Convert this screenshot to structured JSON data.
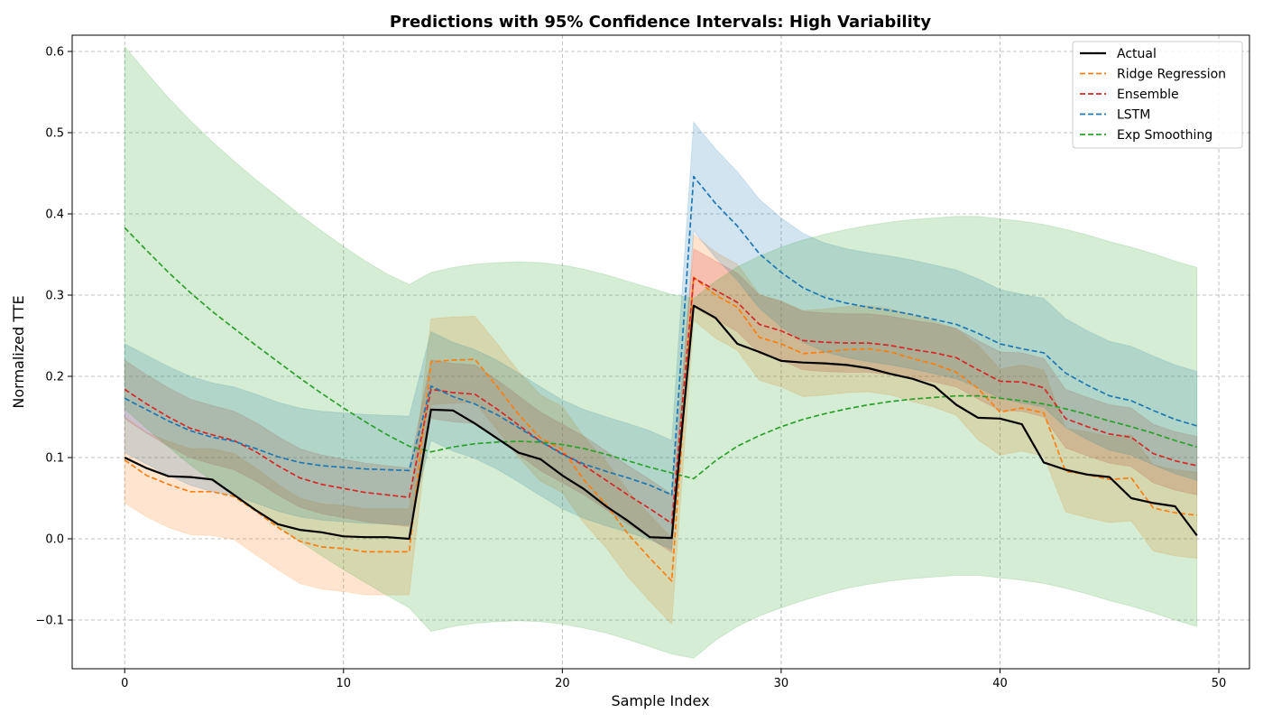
{
  "chart_data": {
    "type": "line",
    "title": "Predictions with 95% Confidence Intervals: High Variability",
    "xlabel": "Sample Index",
    "ylabel": "Normalized TTE",
    "xlim": [
      -2.4,
      51.4
    ],
    "ylim": [
      -0.16,
      0.62
    ],
    "xticks": [
      0,
      10,
      20,
      30,
      40,
      50
    ],
    "yticks": [
      -0.1,
      0.0,
      0.1,
      0.2,
      0.3,
      0.4,
      0.5,
      0.6
    ],
    "ytick_labels": [
      "−0.1",
      "0.0",
      "0.1",
      "0.2",
      "0.3",
      "0.4",
      "0.5",
      "0.6"
    ],
    "grid": true,
    "legend_position": "top-right",
    "x": [
      0,
      1,
      2,
      3,
      4,
      5,
      6,
      7,
      8,
      9,
      10,
      11,
      12,
      13,
      14,
      15,
      16,
      17,
      18,
      19,
      20,
      21,
      22,
      23,
      24,
      25,
      26,
      27,
      28,
      29,
      30,
      31,
      32,
      33,
      34,
      35,
      36,
      37,
      38,
      39,
      40,
      41,
      42,
      43,
      44,
      45,
      46,
      47,
      48,
      49
    ],
    "series": [
      {
        "name": "Actual",
        "color": "#000000",
        "style": "solid",
        "values": [
          0.1,
          0.087,
          0.077,
          0.076,
          0.073,
          0.054,
          0.035,
          0.018,
          0.011,
          0.008,
          0.003,
          0.002,
          0.002,
          0.0,
          0.159,
          0.158,
          0.142,
          0.124,
          0.106,
          0.098,
          0.078,
          0.061,
          0.04,
          0.022,
          0.002,
          0.001,
          0.287,
          0.272,
          0.24,
          0.23,
          0.219,
          0.217,
          0.216,
          0.214,
          0.21,
          0.203,
          0.197,
          0.188,
          0.165,
          0.149,
          0.148,
          0.141,
          0.094,
          0.085,
          0.079,
          0.076,
          0.05,
          0.044,
          0.04,
          0.004
        ]
      },
      {
        "name": "Ridge Regression",
        "color": "#ff7f0e",
        "style": "dashed",
        "values": [
          0.097,
          0.078,
          0.067,
          0.058,
          0.058,
          0.052,
          0.034,
          0.014,
          -0.003,
          -0.01,
          -0.012,
          -0.016,
          -0.016,
          -0.016,
          0.218,
          0.22,
          0.221,
          0.188,
          0.153,
          0.124,
          0.11,
          0.072,
          0.042,
          0.006,
          -0.024,
          -0.052,
          0.322,
          0.3,
          0.285,
          0.248,
          0.24,
          0.228,
          0.23,
          0.233,
          0.234,
          0.23,
          0.222,
          0.215,
          0.205,
          0.185,
          0.156,
          0.161,
          0.155,
          0.083,
          0.079,
          0.073,
          0.075,
          0.038,
          0.032,
          0.029
        ]
      },
      {
        "name": "Ensemble",
        "color": "#d62728",
        "style": "dashed",
        "values": [
          0.184,
          0.166,
          0.15,
          0.136,
          0.128,
          0.121,
          0.107,
          0.09,
          0.075,
          0.067,
          0.062,
          0.057,
          0.054,
          0.051,
          0.184,
          0.18,
          0.178,
          0.16,
          0.14,
          0.12,
          0.105,
          0.09,
          0.072,
          0.054,
          0.037,
          0.019,
          0.321,
          0.306,
          0.291,
          0.264,
          0.256,
          0.244,
          0.242,
          0.241,
          0.241,
          0.238,
          0.233,
          0.229,
          0.223,
          0.208,
          0.194,
          0.193,
          0.186,
          0.148,
          0.138,
          0.129,
          0.125,
          0.105,
          0.096,
          0.09
        ]
      },
      {
        "name": "LSTM",
        "color": "#1f77b4",
        "style": "dashed",
        "values": [
          0.173,
          0.159,
          0.145,
          0.133,
          0.125,
          0.12,
          0.111,
          0.101,
          0.094,
          0.09,
          0.088,
          0.086,
          0.085,
          0.084,
          0.188,
          0.175,
          0.166,
          0.153,
          0.137,
          0.12,
          0.104,
          0.092,
          0.083,
          0.075,
          0.066,
          0.054,
          0.446,
          0.413,
          0.385,
          0.351,
          0.328,
          0.309,
          0.297,
          0.29,
          0.285,
          0.281,
          0.276,
          0.27,
          0.264,
          0.253,
          0.24,
          0.234,
          0.229,
          0.204,
          0.189,
          0.176,
          0.17,
          0.158,
          0.147,
          0.139
        ]
      },
      {
        "name": "Exp Smoothing",
        "color": "#2ca02c",
        "style": "dashed",
        "values": [
          0.383,
          0.355,
          0.328,
          0.303,
          0.28,
          0.259,
          0.238,
          0.218,
          0.198,
          0.179,
          0.161,
          0.144,
          0.128,
          0.114,
          0.107,
          0.113,
          0.117,
          0.119,
          0.12,
          0.119,
          0.116,
          0.111,
          0.104,
          0.096,
          0.088,
          0.081,
          0.074,
          0.096,
          0.114,
          0.127,
          0.138,
          0.147,
          0.154,
          0.16,
          0.165,
          0.169,
          0.172,
          0.174,
          0.176,
          0.176,
          0.173,
          0.17,
          0.166,
          0.16,
          0.153,
          0.145,
          0.138,
          0.13,
          0.121,
          0.113
        ]
      }
    ],
    "intervals": [
      {
        "name": "Ridge Regression",
        "color": "#ff7f0e",
        "lower": [
          0.044,
          0.027,
          0.014,
          0.005,
          0.004,
          -0.001,
          -0.02,
          -0.038,
          -0.055,
          -0.062,
          -0.065,
          -0.069,
          -0.069,
          -0.069,
          0.165,
          0.167,
          0.168,
          0.135,
          0.1,
          0.071,
          0.057,
          0.019,
          -0.011,
          -0.047,
          -0.077,
          -0.105,
          0.269,
          0.247,
          0.232,
          0.195,
          0.187,
          0.175,
          0.177,
          0.18,
          0.181,
          0.177,
          0.169,
          0.162,
          0.152,
          0.122,
          0.103,
          0.108,
          0.102,
          0.033,
          0.026,
          0.02,
          0.022,
          -0.015,
          -0.021,
          -0.024
        ],
        "upper": [
          0.15,
          0.131,
          0.12,
          0.111,
          0.111,
          0.105,
          0.087,
          0.067,
          0.05,
          0.043,
          0.041,
          0.037,
          0.037,
          0.037,
          0.271,
          0.273,
          0.274,
          0.241,
          0.206,
          0.177,
          0.163,
          0.125,
          0.095,
          0.059,
          0.029,
          0.001,
          0.375,
          0.353,
          0.338,
          0.301,
          0.293,
          0.281,
          0.283,
          0.286,
          0.287,
          0.283,
          0.275,
          0.268,
          0.258,
          0.238,
          0.209,
          0.214,
          0.208,
          0.136,
          0.132,
          0.126,
          0.128,
          0.091,
          0.085,
          0.082
        ]
      },
      {
        "name": "Ensemble",
        "color": "#d62728",
        "lower": [
          0.148,
          0.13,
          0.114,
          0.1,
          0.092,
          0.085,
          0.071,
          0.054,
          0.039,
          0.031,
          0.026,
          0.021,
          0.018,
          0.015,
          0.148,
          0.144,
          0.142,
          0.124,
          0.104,
          0.084,
          0.069,
          0.054,
          0.036,
          0.018,
          0.001,
          -0.017,
          0.285,
          0.27,
          0.255,
          0.228,
          0.22,
          0.208,
          0.206,
          0.205,
          0.205,
          0.202,
          0.197,
          0.193,
          0.187,
          0.172,
          0.158,
          0.157,
          0.15,
          0.112,
          0.102,
          0.093,
          0.089,
          0.069,
          0.06,
          0.054
        ],
        "upper": [
          0.22,
          0.202,
          0.186,
          0.172,
          0.164,
          0.157,
          0.143,
          0.126,
          0.111,
          0.103,
          0.098,
          0.093,
          0.09,
          0.087,
          0.22,
          0.216,
          0.214,
          0.196,
          0.176,
          0.156,
          0.141,
          0.126,
          0.108,
          0.09,
          0.073,
          0.055,
          0.357,
          0.342,
          0.327,
          0.3,
          0.292,
          0.28,
          0.278,
          0.277,
          0.277,
          0.274,
          0.269,
          0.265,
          0.259,
          0.244,
          0.23,
          0.229,
          0.222,
          0.184,
          0.174,
          0.165,
          0.161,
          0.141,
          0.132,
          0.126
        ]
      },
      {
        "name": "LSTM",
        "color": "#1f77b4",
        "lower": [
          0.106,
          0.092,
          0.078,
          0.066,
          0.058,
          0.053,
          0.044,
          0.034,
          0.027,
          0.023,
          0.021,
          0.019,
          0.018,
          0.017,
          0.121,
          0.108,
          0.099,
          0.086,
          0.07,
          0.053,
          0.037,
          0.025,
          0.016,
          0.008,
          -0.001,
          -0.013,
          0.379,
          0.346,
          0.318,
          0.284,
          0.261,
          0.242,
          0.23,
          0.223,
          0.218,
          0.214,
          0.209,
          0.203,
          0.197,
          0.186,
          0.173,
          0.167,
          0.162,
          0.137,
          0.122,
          0.109,
          0.103,
          0.091,
          0.08,
          0.072
        ],
        "upper": [
          0.24,
          0.226,
          0.212,
          0.2,
          0.192,
          0.187,
          0.178,
          0.168,
          0.161,
          0.157,
          0.155,
          0.153,
          0.152,
          0.151,
          0.255,
          0.242,
          0.233,
          0.22,
          0.204,
          0.187,
          0.171,
          0.159,
          0.15,
          0.142,
          0.133,
          0.121,
          0.513,
          0.48,
          0.452,
          0.418,
          0.395,
          0.376,
          0.364,
          0.357,
          0.352,
          0.348,
          0.343,
          0.337,
          0.331,
          0.32,
          0.307,
          0.301,
          0.296,
          0.271,
          0.256,
          0.243,
          0.237,
          0.225,
          0.214,
          0.206
        ]
      },
      {
        "name": "Exp Smoothing",
        "color": "#2ca02c",
        "lower": [
          0.16,
          0.136,
          0.113,
          0.091,
          0.071,
          0.053,
          0.034,
          0.015,
          -0.003,
          -0.021,
          -0.038,
          -0.054,
          -0.07,
          -0.085,
          -0.114,
          -0.108,
          -0.104,
          -0.102,
          -0.101,
          -0.102,
          -0.105,
          -0.11,
          -0.116,
          -0.124,
          -0.133,
          -0.142,
          -0.147,
          -0.125,
          -0.108,
          -0.095,
          -0.085,
          -0.076,
          -0.068,
          -0.061,
          -0.056,
          -0.052,
          -0.049,
          -0.047,
          -0.045,
          -0.045,
          -0.048,
          -0.051,
          -0.055,
          -0.061,
          -0.068,
          -0.076,
          -0.083,
          -0.091,
          -0.1,
          -0.108
        ],
        "upper": [
          0.606,
          0.574,
          0.543,
          0.515,
          0.489,
          0.465,
          0.442,
          0.421,
          0.399,
          0.379,
          0.36,
          0.342,
          0.326,
          0.313,
          0.328,
          0.334,
          0.338,
          0.34,
          0.341,
          0.34,
          0.337,
          0.332,
          0.325,
          0.317,
          0.309,
          0.301,
          0.296,
          0.317,
          0.335,
          0.348,
          0.359,
          0.368,
          0.375,
          0.381,
          0.386,
          0.39,
          0.393,
          0.395,
          0.397,
          0.397,
          0.394,
          0.391,
          0.387,
          0.381,
          0.374,
          0.366,
          0.359,
          0.351,
          0.342,
          0.334
        ]
      }
    ]
  }
}
